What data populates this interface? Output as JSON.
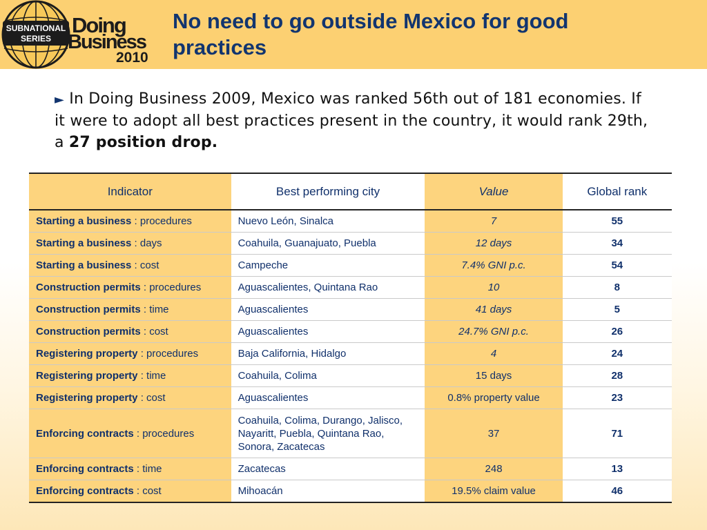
{
  "logo": {
    "badge_line1": "SUBNATIONAL",
    "badge_line2": "SERIES",
    "brand_line1": "Doing",
    "brand_line2": "Business",
    "year": "2010"
  },
  "title": "No need to go outside Mexico for good practices",
  "intro": {
    "text": "In Doing Business 2009, Mexico was ranked 56th out of 181 economies. If it were to adopt all best practices present in the country, it would rank 29th, a ",
    "bold": "27 position drop."
  },
  "table": {
    "headers": [
      "Indicator",
      "Best performing city",
      "Value",
      "Global rank"
    ],
    "rows": [
      {
        "indicator": "Starting a business",
        "measure": " : procedures",
        "city": "Nuevo León, Sinalca",
        "value": "7",
        "rank": "55"
      },
      {
        "indicator": "Starting a business",
        "measure": " : days",
        "city": "Coahuila, Guanajuato, Puebla",
        "value": "12 days",
        "rank": "34"
      },
      {
        "indicator": "Starting a business",
        "measure": " : cost",
        "city": "Campeche",
        "value": "7.4% GNI p.c.",
        "rank": "54"
      },
      {
        "indicator": "Construction permits",
        "measure": " : procedures",
        "city": "Aguascalientes, Quintana Rao",
        "value": "10",
        "rank": "8"
      },
      {
        "indicator": "Construction permits",
        "measure": " : time",
        "city": "Aguascalientes",
        "value": "41 days",
        "rank": "5"
      },
      {
        "indicator": "Construction permits",
        "measure": " : cost",
        "city": "Aguascalientes",
        "value": "24.7% GNI p.c.",
        "rank": "26"
      },
      {
        "indicator": "Registering property",
        "measure": " : procedures",
        "city": "Baja California, Hidalgo",
        "value": "4",
        "rank": "24"
      },
      {
        "indicator": "Registering property",
        "measure": " : time",
        "city": "Coahuila, Colima",
        "value": "15 days",
        "rank": "28"
      },
      {
        "indicator": "Registering property",
        "measure": " : cost",
        "city": "Aguascalientes",
        "value": "0.8% property value",
        "rank": "23"
      },
      {
        "indicator": "Enforcing contracts",
        "measure": " : procedures",
        "city": "Coahuila, Colima, Durango, Jalisco, Nayaritt, Puebla, Quintana Rao, Sonora, Zacatecas",
        "value": "37",
        "rank": "71"
      },
      {
        "indicator": "Enforcing contracts",
        "measure": " : time",
        "city": "Zacatecas",
        "value": "248",
        "rank": "13"
      },
      {
        "indicator": "Enforcing contracts",
        "measure": " : cost",
        "city": "Mihoacán",
        "value": "19.5% claim value",
        "rank": "46"
      }
    ]
  },
  "colors": {
    "header_band": "#fcd072",
    "navy": "#12356f",
    "column_highlight": "#fdd47e"
  }
}
